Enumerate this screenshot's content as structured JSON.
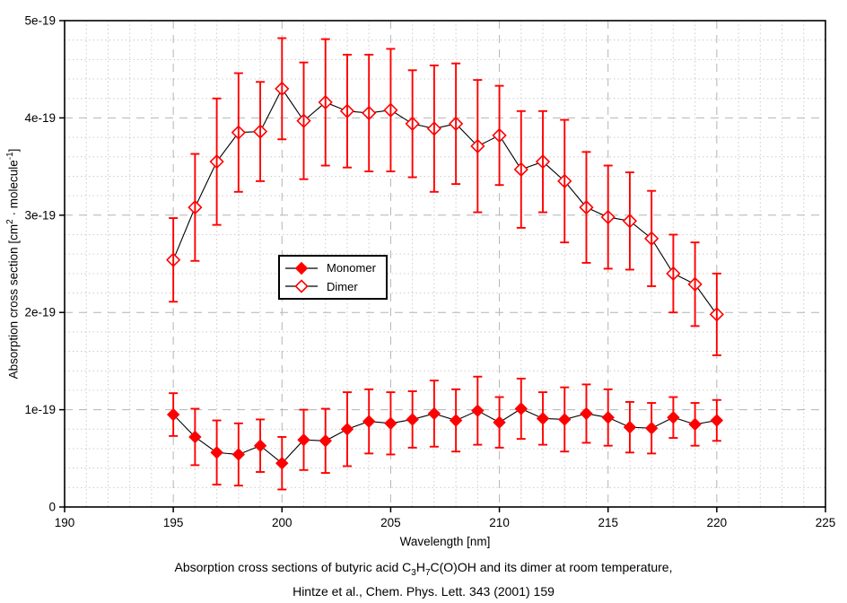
{
  "page": {
    "background": "#ffffff"
  },
  "caption": {
    "line1_p1": "Absorption cross sections of butyric acid C",
    "line1_sub1": "3",
    "line1_p2": "H",
    "line1_sub2": "7",
    "line1_p3": "C(O)OH and its dimer at room temperature,",
    "line2": "Hintze et al., Chem. Phys. Lett. 343 (2001) 159"
  },
  "chart_data": {
    "type": "line",
    "title": "",
    "xlabel": "Wavelength [nm]",
    "ylabel": "Absorption cross section [cm2 · molecule-1]",
    "ylabel_parts": {
      "p1": "Absorption cross section [cm",
      "sup1": "2",
      "p2": " · molecule",
      "sup2": "-1",
      "p3": "]"
    },
    "units_note": "values and errors in 1e-19 cm2/molecule",
    "xlim": [
      190,
      225
    ],
    "ylim_e19": [
      0,
      5
    ],
    "x_major_ticks": [
      190,
      195,
      200,
      205,
      210,
      215,
      220,
      225
    ],
    "x_minor_step": 1,
    "y_major_ticks": [
      0,
      1,
      2,
      3,
      4,
      5
    ],
    "y_tick_labels": [
      "0",
      "1e-19",
      "2e-19",
      "3e-19",
      "4e-19",
      "5e-19"
    ],
    "y_minor_step": 0.2,
    "grid": true,
    "legend_position": "inside-left-middle",
    "colors": {
      "series_red": "#ff0000",
      "line_black": "#000000",
      "grid_major": "#b4b4b4",
      "grid_minor": "#cccccc",
      "frame": "#000000"
    },
    "x": [
      195,
      196,
      197,
      198,
      199,
      200,
      201,
      202,
      203,
      204,
      205,
      206,
      207,
      208,
      209,
      210,
      211,
      212,
      213,
      214,
      215,
      216,
      217,
      218,
      219,
      220
    ],
    "series": [
      {
        "name": "Monomer",
        "marker": "filled-diamond",
        "color": "#ff0000",
        "line_color": "#000000",
        "values_e19": [
          0.95,
          0.72,
          0.56,
          0.54,
          0.63,
          0.45,
          0.69,
          0.68,
          0.8,
          0.88,
          0.86,
          0.9,
          0.96,
          0.89,
          0.99,
          0.87,
          1.01,
          0.91,
          0.9,
          0.96,
          0.92,
          0.82,
          0.81,
          0.92,
          0.85,
          0.89
        ],
        "errors_e19": [
          0.22,
          0.29,
          0.33,
          0.32,
          0.27,
          0.27,
          0.31,
          0.33,
          0.38,
          0.33,
          0.32,
          0.29,
          0.34,
          0.32,
          0.35,
          0.26,
          0.31,
          0.27,
          0.33,
          0.3,
          0.29,
          0.26,
          0.26,
          0.21,
          0.22,
          0.21
        ]
      },
      {
        "name": "Dimer",
        "marker": "open-diamond",
        "color": "#ff0000",
        "line_color": "#000000",
        "values_e19": [
          2.54,
          3.08,
          3.55,
          3.85,
          3.86,
          4.3,
          3.97,
          4.16,
          4.07,
          4.05,
          4.08,
          3.94,
          3.89,
          3.94,
          3.71,
          3.82,
          3.47,
          3.55,
          3.35,
          3.08,
          2.98,
          2.94,
          2.76,
          2.4,
          2.29,
          1.98
        ],
        "errors_e19": [
          0.43,
          0.55,
          0.65,
          0.61,
          0.51,
          0.52,
          0.6,
          0.65,
          0.58,
          0.6,
          0.63,
          0.55,
          0.65,
          0.62,
          0.68,
          0.51,
          0.6,
          0.52,
          0.63,
          0.57,
          0.53,
          0.5,
          0.49,
          0.4,
          0.43,
          0.42
        ]
      }
    ]
  }
}
